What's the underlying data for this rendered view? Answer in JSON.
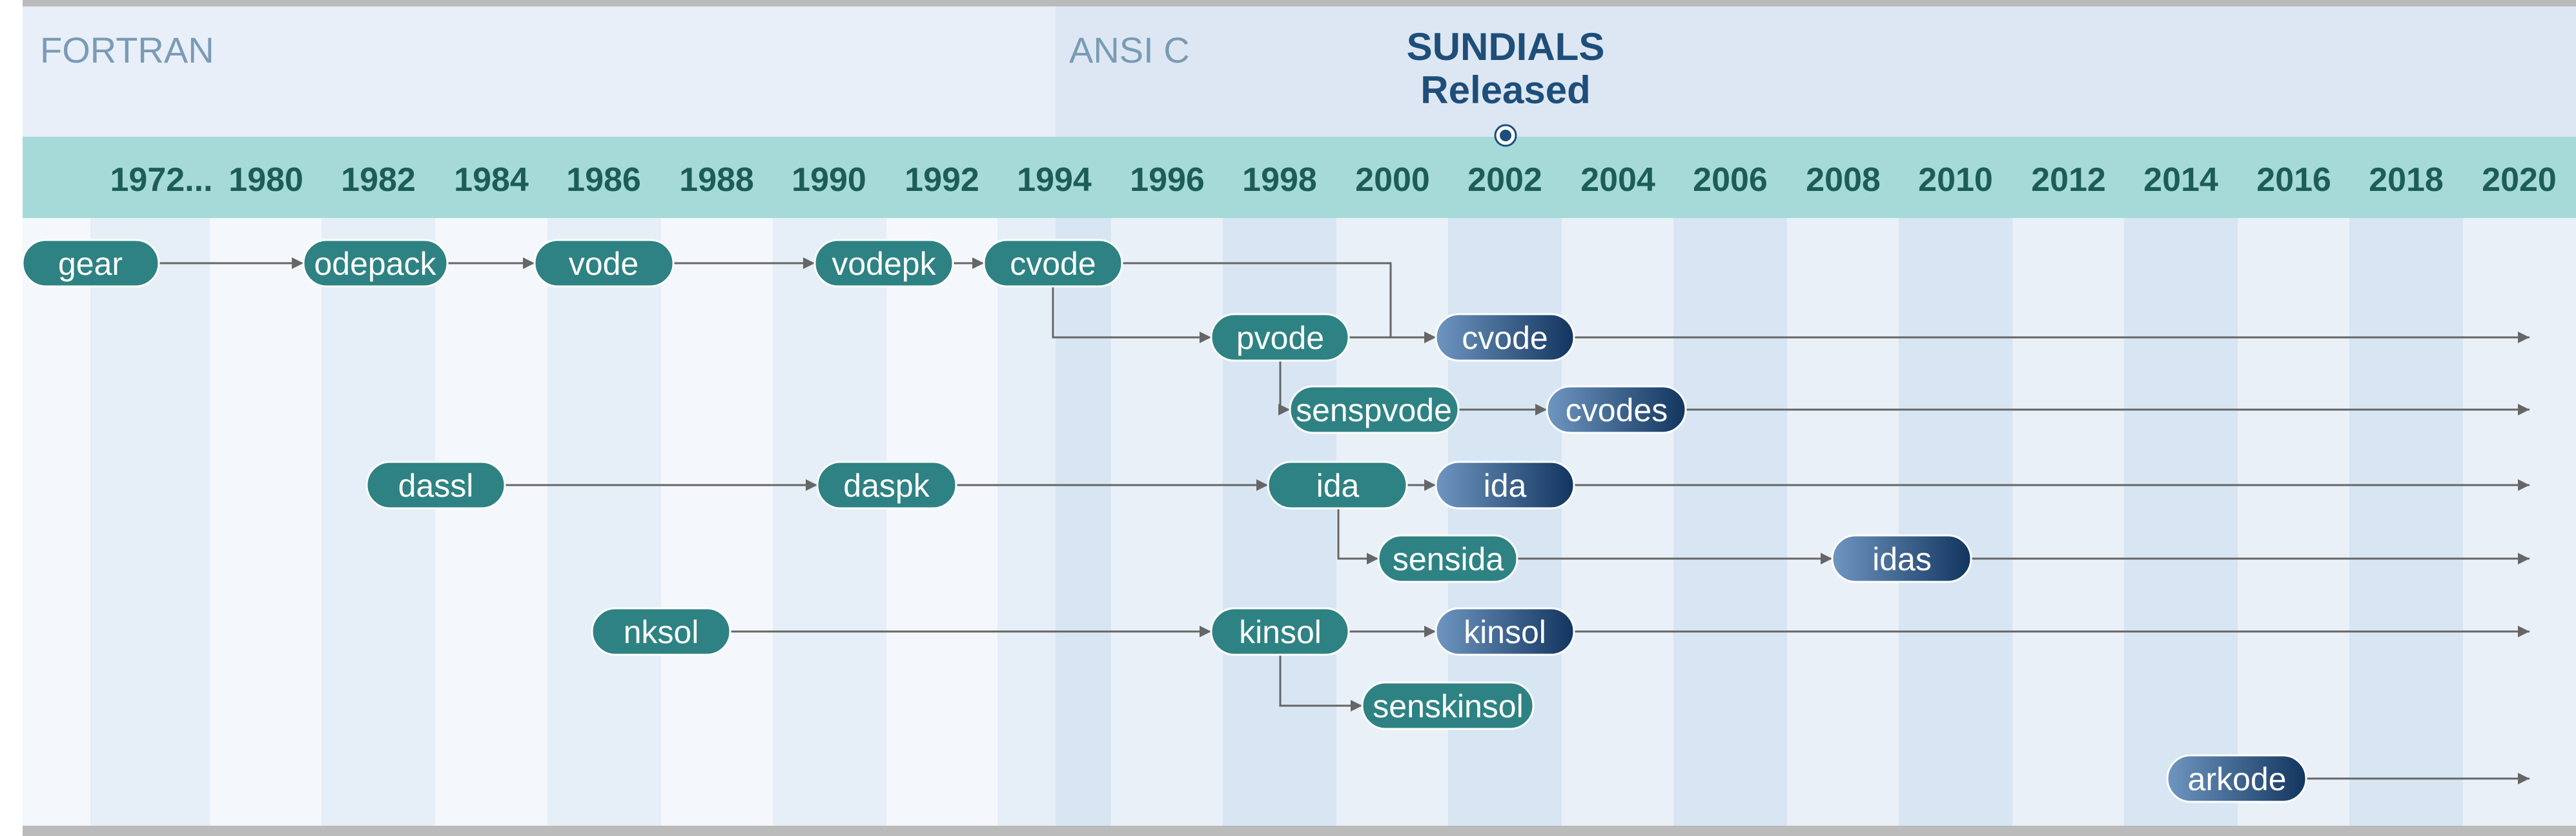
{
  "eras": {
    "fortran": "FORTRAN",
    "ansi_c": "ANSI C"
  },
  "banner": {
    "line1": "SUNDIALS",
    "line2": "Released"
  },
  "years": [
    "1972...",
    "1980",
    "1982",
    "1984",
    "1986",
    "1988",
    "1990",
    "1992",
    "1994",
    "1996",
    "1998",
    "2000",
    "2002",
    "2004",
    "2006",
    "2008",
    "2010",
    "2012",
    "2014",
    "2016",
    "2018",
    "2020"
  ],
  "nodes": {
    "gear": "gear",
    "odepack": "odepack",
    "vode": "vode",
    "vodepk": "vodepk",
    "cvode_fortran": "cvode",
    "pvode": "pvode",
    "cvode_sundials": "cvode",
    "senspvode": "senspvode",
    "cvodes": "cvodes",
    "dassl": "dassl",
    "daspk": "daspk",
    "ida_fortran": "ida",
    "ida_sundials": "ida",
    "sensida": "sensida",
    "idas": "idas",
    "nksol": "nksol",
    "kinsol_fortran": "kinsol",
    "kinsol_sundials": "kinsol",
    "senskinsol": "senskinsol",
    "arkode": "arkode"
  },
  "colors": {
    "fortran_node": "#2e8283",
    "sundials_node_light": "#6e96c0",
    "sundials_node_dark": "#12355f",
    "year_band": "#a6dad8",
    "year_text": "#1d5d57",
    "banner_text": "#1e4e79",
    "lang_text": "#7a9bb5",
    "arrow": "#666666"
  }
}
